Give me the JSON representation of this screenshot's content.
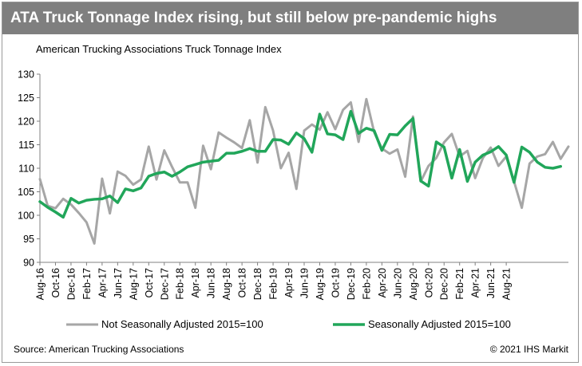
{
  "title": "ATA Truck Tonnage Index rising, but still below pre-pandemic highs",
  "chart_data": {
    "type": "line",
    "subtitle": "American Trucking Associations Truck Tonnage Index",
    "x_tick_labels": [
      "Aug-16",
      "Oct-16",
      "Dec-16",
      "Feb-17",
      "Apr-17",
      "Jun-17",
      "Aug-17",
      "Oct-17",
      "Dec-17",
      "Feb-18",
      "Apr-18",
      "Jun-18",
      "Aug-18",
      "Oct-18",
      "Dec-18",
      "Feb-19",
      "Apr-19",
      "Jun-19",
      "Aug-19",
      "Oct-19",
      "Dec-19",
      "Feb-20",
      "Apr-20",
      "Jun-20",
      "Aug-20",
      "Oct-20",
      "Dec-20",
      "Feb-21",
      "Apr-21",
      "Jun-21",
      "Aug-21"
    ],
    "ylim": [
      90,
      130
    ],
    "yticks": [
      90,
      95,
      100,
      105,
      110,
      115,
      120,
      125,
      130
    ],
    "grid": false,
    "legend_position": "bottom",
    "series": [
      {
        "name": "Not Seasonally Adjusted 2015=100",
        "color": "#a6a6a6",
        "values": [
          107.7,
          102.0,
          101.5,
          103.5,
          102.3,
          100.5,
          98.5,
          94.0,
          107.8,
          100.4,
          109.3,
          108.4,
          106.5,
          107.6,
          114.6,
          107.6,
          113.8,
          110.3,
          107.0,
          107.0,
          101.6,
          114.8,
          109.8,
          117.6,
          116.5,
          115.5,
          114.3,
          120.2,
          111.2,
          123.0,
          118.0,
          110.0,
          113.3,
          105.6,
          118.0,
          119.3,
          118.2,
          121.9,
          118.3,
          122.4,
          124.0,
          115.6,
          124.7,
          117.7,
          114.2,
          113.1,
          114.0,
          108.2,
          121.0,
          107.2,
          110.5,
          112.2,
          115.5,
          117.3,
          112.5,
          113.7,
          107.9,
          112.2,
          114.4,
          110.5,
          112.5,
          107.2,
          101.6,
          111.0,
          112.5,
          113.0,
          115.6,
          112.0,
          114.6
        ]
      },
      {
        "name": "Seasonally Adjusted 2015=100",
        "color": "#21a65a",
        "values": [
          102.9,
          101.7,
          100.7,
          99.6,
          103.6,
          102.6,
          103.2,
          103.4,
          103.5,
          104.1,
          102.7,
          105.6,
          105.2,
          105.8,
          108.3,
          108.9,
          109.2,
          108.3,
          109.2,
          110.3,
          110.8,
          111.3,
          111.5,
          111.7,
          113.2,
          113.2,
          113.6,
          114.2,
          113.6,
          113.6,
          116.1,
          116.0,
          115.1,
          117.5,
          116.3,
          113.4,
          121.5,
          117.3,
          117.1,
          116.1,
          122.1,
          117.4,
          118.5,
          118.0,
          113.8,
          117.2,
          117.1,
          119.0,
          120.6,
          107.3,
          106.2,
          115.6,
          114.5,
          107.9,
          114.0,
          107.2,
          111.3,
          112.8,
          113.5,
          114.6,
          112.8,
          107.0,
          114.5,
          113.4,
          111.3,
          110.2,
          110.0,
          110.4
        ]
      }
    ]
  },
  "source": "Source: American Trucking Associations",
  "copyright": "© 2021 IHS Markit"
}
